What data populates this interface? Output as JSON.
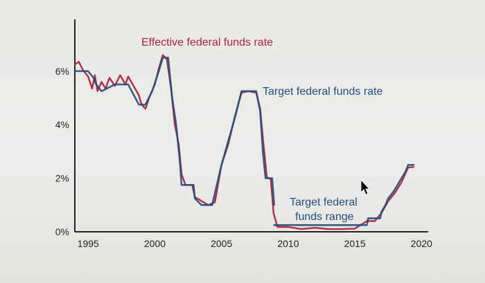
{
  "chart_data": {
    "type": "line",
    "title": "",
    "xlabel": "",
    "ylabel": "",
    "xlim": [
      1994,
      2020.5
    ],
    "ylim": [
      0,
      7
    ],
    "x_ticks": [
      1995,
      2000,
      2005,
      2010,
      2015,
      2020
    ],
    "x_tick_labels": [
      "1995",
      "2000",
      "2005",
      "2010",
      "2015",
      "2020"
    ],
    "y_ticks": [
      0,
      2,
      4,
      6
    ],
    "y_tick_labels": [
      "0%",
      "2%",
      "4%",
      "6%"
    ],
    "grid": false,
    "annotations": [
      {
        "text": "Effective federal funds rate",
        "color": "#b5203a"
      },
      {
        "text": "Target federal funds rate",
        "color": "#1f4f80"
      },
      {
        "text_lines": [
          "Target federal",
          "funds range"
        ],
        "color": "#1f4f80"
      }
    ],
    "series": [
      {
        "name": "Effective federal funds rate",
        "color": "#b5203a",
        "points": [
          [
            1994.0,
            6.25
          ],
          [
            1994.3,
            6.35
          ],
          [
            1994.6,
            6.05
          ],
          [
            1995.0,
            5.8
          ],
          [
            1995.3,
            5.35
          ],
          [
            1995.5,
            5.85
          ],
          [
            1995.7,
            5.25
          ],
          [
            1996.0,
            5.6
          ],
          [
            1996.3,
            5.35
          ],
          [
            1996.6,
            5.75
          ],
          [
            1997.0,
            5.45
          ],
          [
            1997.4,
            5.85
          ],
          [
            1997.8,
            5.5
          ],
          [
            1998.0,
            5.8
          ],
          [
            1998.4,
            5.45
          ],
          [
            1998.8,
            5.1
          ],
          [
            1999.0,
            4.75
          ],
          [
            1999.3,
            4.6
          ],
          [
            1999.6,
            5.05
          ],
          [
            2000.0,
            5.5
          ],
          [
            2000.3,
            6.1
          ],
          [
            2000.6,
            6.6
          ],
          [
            2000.9,
            6.45
          ],
          [
            2001.2,
            5.4
          ],
          [
            2001.5,
            4.0
          ],
          [
            2001.8,
            3.25
          ],
          [
            2002.0,
            2.15
          ],
          [
            2002.3,
            1.75
          ],
          [
            2002.8,
            1.75
          ],
          [
            2003.0,
            1.3
          ],
          [
            2003.5,
            1.15
          ],
          [
            2004.0,
            1.0
          ],
          [
            2004.5,
            1.1
          ],
          [
            2005.0,
            2.5
          ],
          [
            2005.5,
            3.25
          ],
          [
            2006.0,
            4.3
          ],
          [
            2006.5,
            5.2
          ],
          [
            2007.0,
            5.25
          ],
          [
            2007.6,
            5.2
          ],
          [
            2007.9,
            4.6
          ],
          [
            2008.1,
            3.5
          ],
          [
            2008.4,
            2.05
          ],
          [
            2008.7,
            1.95
          ],
          [
            2008.9,
            0.7
          ],
          [
            2009.2,
            0.18
          ],
          [
            2010.0,
            0.18
          ],
          [
            2011.0,
            0.1
          ],
          [
            2012.0,
            0.15
          ],
          [
            2013.0,
            0.1
          ],
          [
            2014.0,
            0.1
          ],
          [
            2015.0,
            0.12
          ],
          [
            2015.9,
            0.4
          ],
          [
            2016.5,
            0.4
          ],
          [
            2017.0,
            0.7
          ],
          [
            2017.5,
            1.15
          ],
          [
            2018.0,
            1.45
          ],
          [
            2018.5,
            1.85
          ],
          [
            2019.0,
            2.4
          ],
          [
            2019.4,
            2.42
          ]
        ]
      },
      {
        "name": "Target federal funds rate",
        "color": "#1f4f80",
        "points": [
          [
            1994.0,
            6.0
          ],
          [
            1995.0,
            6.0
          ],
          [
            1995.4,
            5.75
          ],
          [
            1995.6,
            5.5
          ],
          [
            1996.0,
            5.25
          ],
          [
            1997.0,
            5.5
          ],
          [
            1998.0,
            5.5
          ],
          [
            1998.8,
            4.75
          ],
          [
            1999.3,
            4.75
          ],
          [
            1999.8,
            5.25
          ],
          [
            2000.3,
            6.0
          ],
          [
            2000.6,
            6.5
          ],
          [
            2001.0,
            6.5
          ],
          [
            2001.3,
            5.0
          ],
          [
            2001.6,
            4.0
          ],
          [
            2001.9,
            2.5
          ],
          [
            2002.0,
            1.75
          ],
          [
            2002.9,
            1.75
          ],
          [
            2003.0,
            1.25
          ],
          [
            2003.5,
            1.0
          ],
          [
            2004.3,
            1.0
          ],
          [
            2005.0,
            2.5
          ],
          [
            2006.0,
            4.25
          ],
          [
            2006.5,
            5.25
          ],
          [
            2007.6,
            5.25
          ],
          [
            2007.9,
            4.5
          ],
          [
            2008.1,
            3.0
          ],
          [
            2008.3,
            2.0
          ],
          [
            2008.8,
            2.0
          ],
          [
            2008.95,
            1.0
          ]
        ]
      },
      {
        "name": "Target federal funds range",
        "color": "#1f4f80",
        "points": [
          [
            2008.95,
            0.25
          ],
          [
            2015.9,
            0.25
          ],
          [
            2016.0,
            0.5
          ],
          [
            2016.9,
            0.5
          ],
          [
            2017.0,
            0.75
          ],
          [
            2017.3,
            1.0
          ],
          [
            2017.5,
            1.25
          ],
          [
            2017.9,
            1.5
          ],
          [
            2018.2,
            1.75
          ],
          [
            2018.5,
            2.0
          ],
          [
            2018.8,
            2.25
          ],
          [
            2019.0,
            2.5
          ],
          [
            2019.4,
            2.5
          ]
        ]
      }
    ]
  }
}
